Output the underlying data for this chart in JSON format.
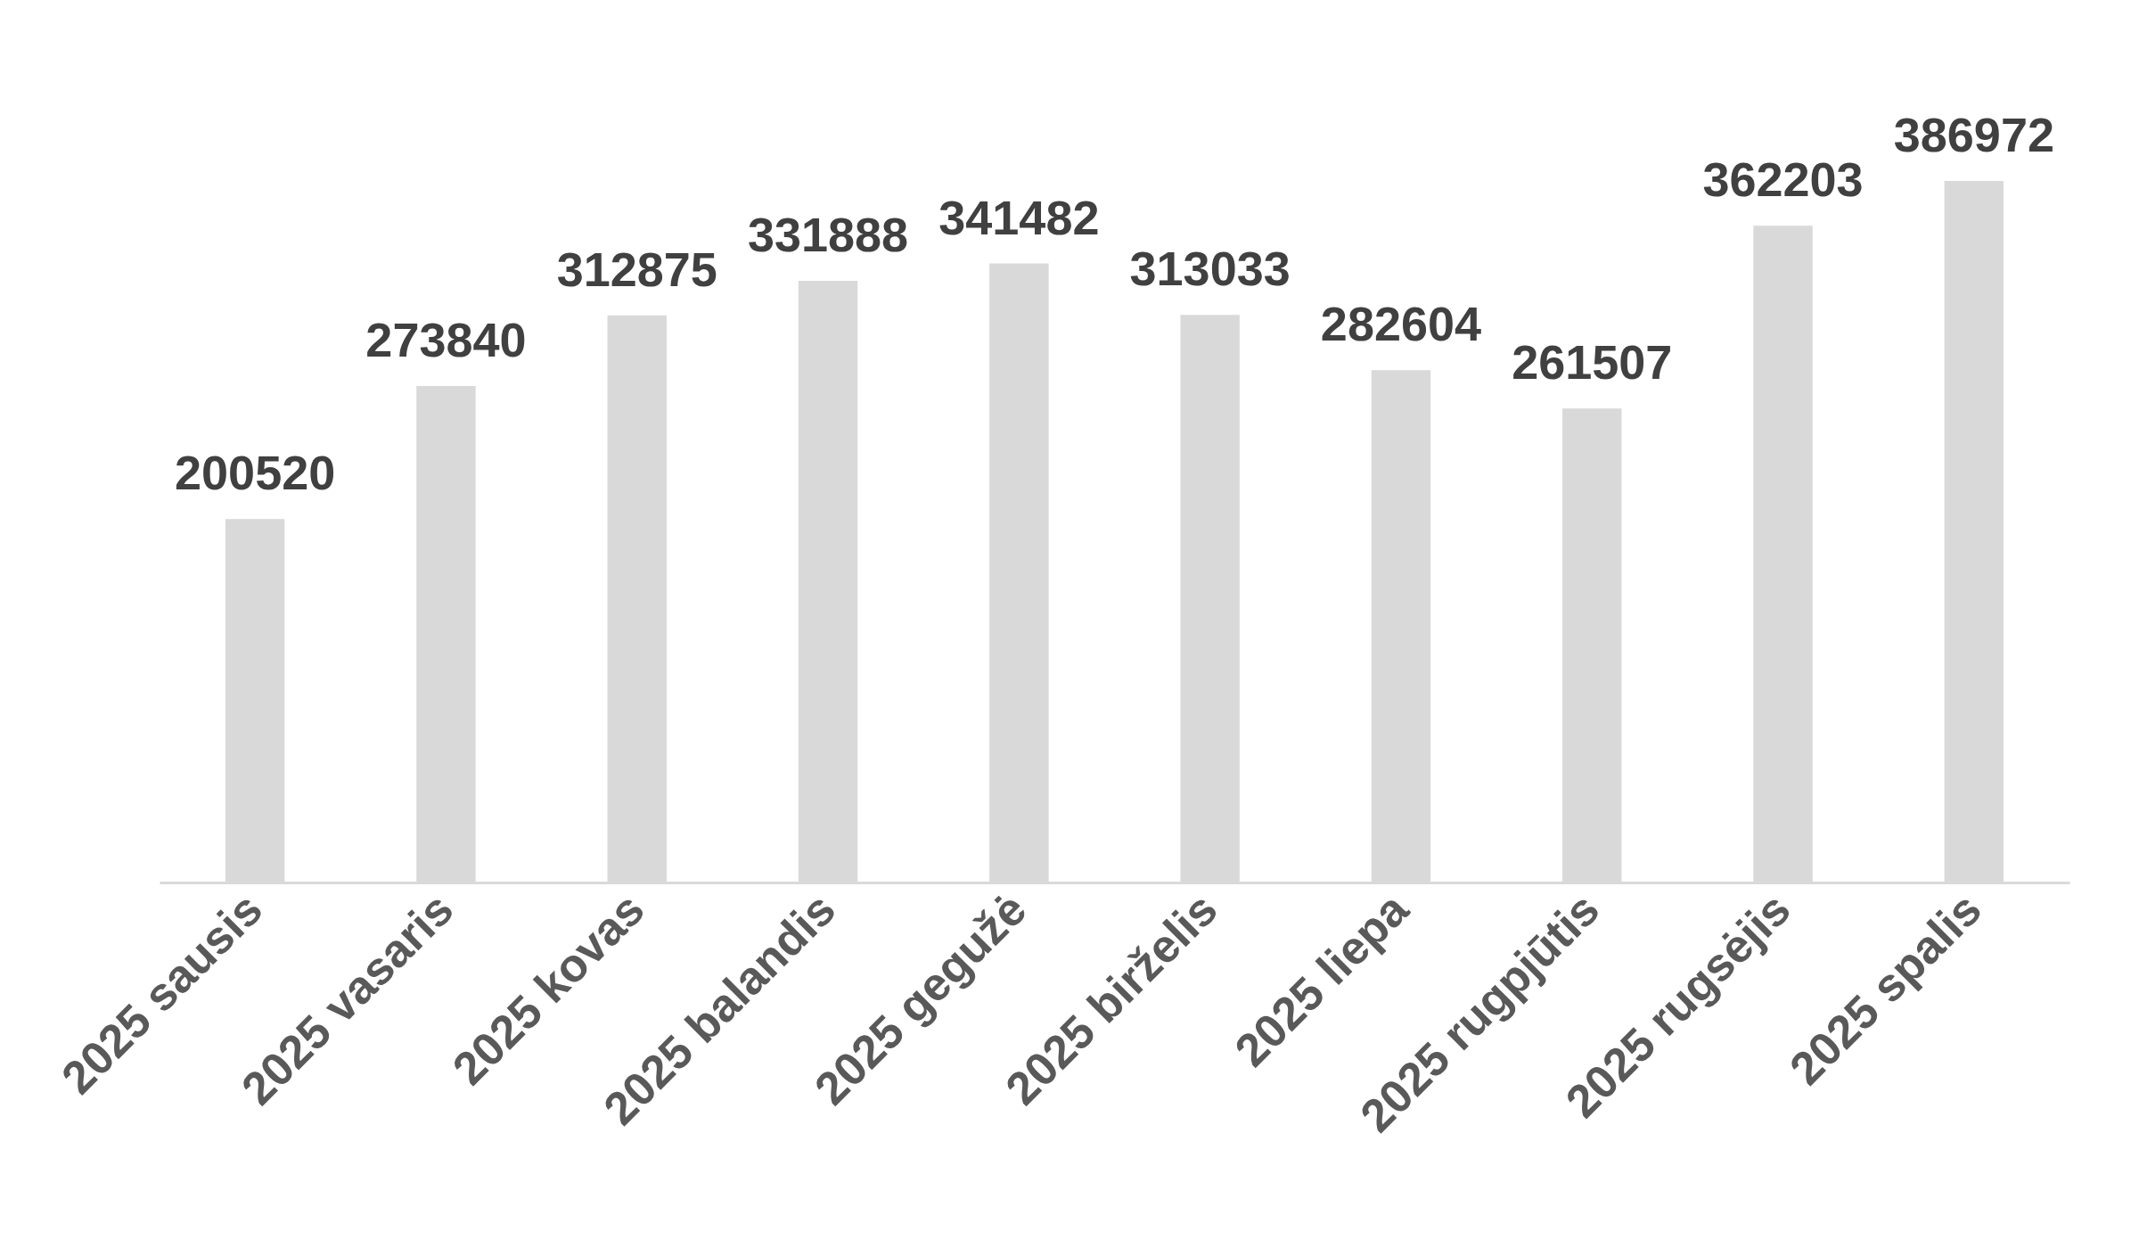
{
  "chart_data": {
    "type": "bar",
    "categories": [
      "2025 sausis",
      "2025 vasaris",
      "2025 kovas",
      "2025 balandis",
      "2025 gegužė",
      "2025 birželis",
      "2025 liepa",
      "2025 rugpjūtis",
      "2025 rugsėjis",
      "2025 spalis"
    ],
    "values": [
      200520,
      273840,
      312875,
      331888,
      341482,
      313033,
      282604,
      261507,
      362203,
      386972
    ],
    "color": "#d9d9d9",
    "data_labels": true,
    "tick_labels": "x"
  }
}
